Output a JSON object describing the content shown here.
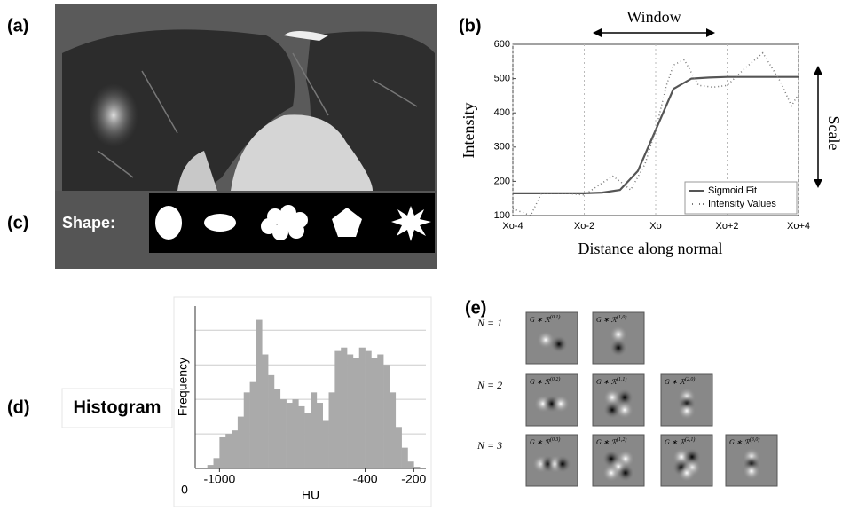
{
  "panel_labels": [
    "(a)",
    "(b)",
    "(c)",
    "(d)",
    "(e)"
  ],
  "shape_panel": {
    "label": "Shape:"
  },
  "chart_data": [
    {
      "type": "line",
      "xlabel": "Distance along normal",
      "ylabel": "Intensity",
      "annotations": [
        "Window",
        "Scale"
      ],
      "xlim": [
        -4,
        4
      ],
      "ylim": [
        100,
        600
      ],
      "xticks": [
        {
          "value": -4,
          "label": "Xo-4"
        },
        {
          "value": -2,
          "label": "Xo-2"
        },
        {
          "value": 0,
          "label": "Xo"
        },
        {
          "value": 2,
          "label": "Xo+2"
        },
        {
          "value": 4,
          "label": "Xo+4"
        }
      ],
      "yticks": [
        100,
        200,
        300,
        400,
        500,
        600
      ],
      "legend": "lower right",
      "series": [
        {
          "name": "Sigmoid Fit",
          "color": "#555555",
          "style": "solid",
          "x": [
            -4,
            -3,
            -2,
            -1.5,
            -1,
            -0.5,
            0,
            0.5,
            1,
            1.5,
            2,
            3,
            4
          ],
          "values": [
            165,
            165,
            165,
            167,
            175,
            230,
            350,
            470,
            500,
            503,
            505,
            505,
            505
          ]
        },
        {
          "name": "Intensity Values",
          "color": "#777777",
          "style": "dotted",
          "x": [
            -4,
            -3.5,
            -3.2,
            -2.5,
            -2,
            -1.5,
            -1.2,
            -1,
            -0.7,
            -0.3,
            0,
            0.3,
            0.5,
            0.8,
            1.2,
            1.6,
            2,
            2.5,
            3,
            3.5,
            3.8,
            4
          ],
          "values": [
            120,
            100,
            165,
            165,
            160,
            195,
            215,
            200,
            175,
            250,
            350,
            480,
            540,
            555,
            480,
            475,
            480,
            530,
            575,
            490,
            420,
            455
          ]
        }
      ]
    },
    {
      "type": "histogram",
      "title": "Histogram",
      "xlabel": "HU",
      "ylabel": "Frequency",
      "color": "#aaaaaa",
      "xlim": [
        -1100,
        -150
      ],
      "ylim": [
        0,
        4.7
      ],
      "xticks": [
        -1000,
        -400,
        -200
      ],
      "yticks": [
        0
      ],
      "ygrid": [
        1,
        2,
        3,
        4
      ],
      "bins": [
        -1050,
        -1025,
        -1000,
        -975,
        -950,
        -925,
        -900,
        -875,
        -850,
        -825,
        -800,
        -775,
        -750,
        -725,
        -700,
        -675,
        -650,
        -625,
        -600,
        -575,
        -550,
        -525,
        -500,
        -475,
        -450,
        -425,
        -400,
        -375,
        -350,
        -325,
        -300,
        -275,
        -250,
        -225,
        -200,
        -175
      ],
      "values": [
        0.1,
        0.3,
        0.9,
        1.0,
        1.1,
        1.5,
        2.2,
        2.5,
        4.3,
        3.3,
        2.7,
        2.3,
        2.0,
        1.9,
        2.0,
        1.8,
        1.6,
        2.2,
        1.9,
        1.4,
        2.2,
        3.4,
        3.5,
        3.3,
        3.2,
        3.5,
        3.4,
        3.2,
        3.3,
        3.0,
        2.2,
        1.2,
        0.6,
        0.2,
        0.05
      ]
    }
  ],
  "filter_panel": {
    "rows": [
      {
        "label": "N = 1",
        "filters": [
          {
            "base": "G ∗ ℛ",
            "sup": "(0,1)"
          },
          {
            "base": "G ∗ ℛ",
            "sup": "(1,0)"
          }
        ]
      },
      {
        "label": "N = 2",
        "filters": [
          {
            "base": "G ∗ ℛ",
            "sup": "(0,2)"
          },
          {
            "base": "G ∗ ℛ",
            "sup": "(1,1)"
          },
          {
            "base": "G ∗ ℛ",
            "sup": "(2,0)"
          }
        ]
      },
      {
        "label": "N = 3",
        "filters": [
          {
            "base": "G ∗ ℛ",
            "sup": "(0,3)"
          },
          {
            "base": "G ∗ ℛ",
            "sup": "(1,2)"
          },
          {
            "base": "G ∗ ℛ",
            "sup": "(2,1)"
          },
          {
            "base": "G ∗ ℛ",
            "sup": "(3,0)"
          }
        ]
      }
    ]
  }
}
